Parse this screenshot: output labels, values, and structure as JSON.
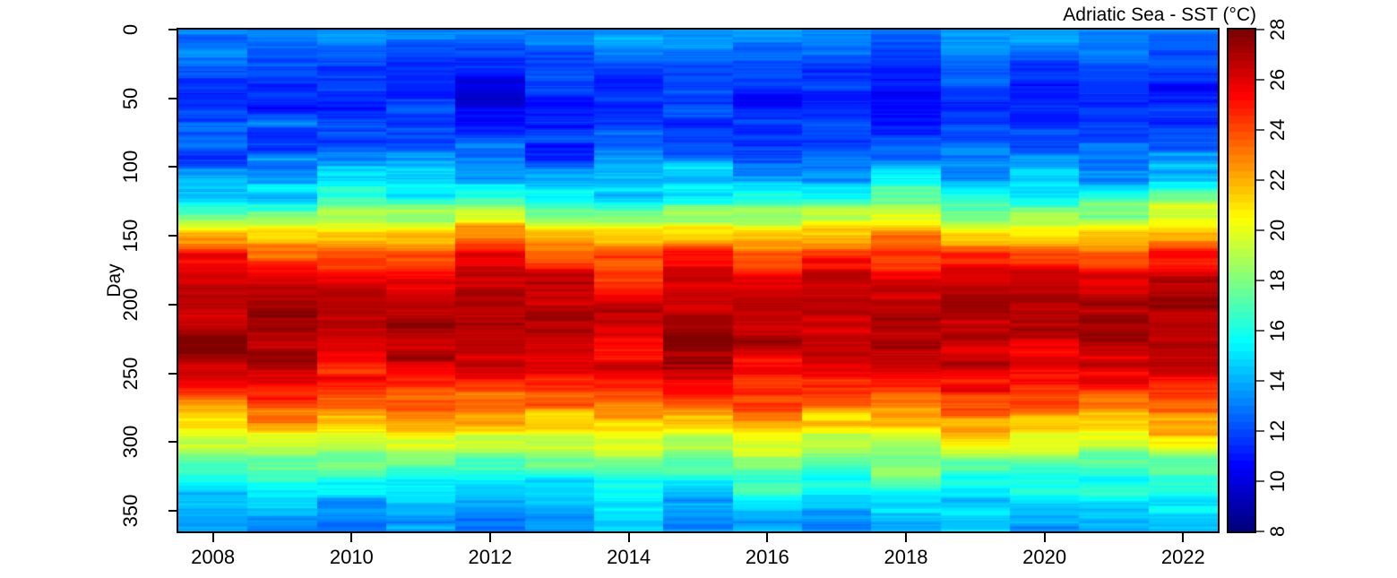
{
  "title": "Adriatic Sea - SST (°C)",
  "colors": {
    "background": "#ffffff",
    "plot_border": "#000000",
    "axis_tick": "#000000",
    "colorbar_tick": "#555555"
  },
  "chart_data": {
    "type": "heatmap",
    "title": "Adriatic Sea - SST (°C)",
    "xlabel": "",
    "ylabel": "Day",
    "x_ticks": [
      "2008",
      "2010",
      "2012",
      "2014",
      "2016",
      "2018",
      "2020",
      "2022"
    ],
    "y_ticks": [
      "0",
      "50",
      "100",
      "150",
      "200",
      "250",
      "300",
      "350"
    ],
    "y_range": [
      0,
      365
    ],
    "x_range": [
      2007.5,
      2022.5
    ],
    "grid": false,
    "colormap": "jet",
    "zlim": [
      8,
      28
    ],
    "colorbar_ticks": [
      "8",
      "10",
      "12",
      "14",
      "16",
      "18",
      "20",
      "22",
      "24",
      "26",
      "28"
    ],
    "colorbar_position": "right",
    "n_color_levels": 64,
    "daily_noise_sd_degC": 0.55,
    "control_days": [
      0,
      15,
      30,
      45,
      60,
      75,
      90,
      105,
      120,
      135,
      150,
      165,
      180,
      195,
      210,
      225,
      240,
      255,
      270,
      285,
      300,
      315,
      330,
      345,
      360
    ],
    "series": [
      {
        "name": "2008",
        "values": [
          13.4,
          12.6,
          11.9,
          11.5,
          11.6,
          12.0,
          12.6,
          13.6,
          15.2,
          18.0,
          21.6,
          24.6,
          26.3,
          27.2,
          26.8,
          27.4,
          26.6,
          25.2,
          23.2,
          20.6,
          18.9,
          16.9,
          15.3,
          14.0,
          13.2
        ]
      },
      {
        "name": "2009",
        "values": [
          13.2,
          12.4,
          11.7,
          11.3,
          11.4,
          11.9,
          12.7,
          14.0,
          15.8,
          18.8,
          22.3,
          24.2,
          25.7,
          26.8,
          27.2,
          26.6,
          26.8,
          25.6,
          24.3,
          23.0,
          19.5,
          17.2,
          15.8,
          14.6,
          13.8
        ]
      },
      {
        "name": "2010",
        "values": [
          13.5,
          12.6,
          11.6,
          11.2,
          11.3,
          11.8,
          12.8,
          14.2,
          15.6,
          18.2,
          21.8,
          24.0,
          26.0,
          26.8,
          26.4,
          26.6,
          25.8,
          25.0,
          23.4,
          21.4,
          19.2,
          17.6,
          15.6,
          14.2,
          13.3
        ]
      },
      {
        "name": "2011",
        "values": [
          13.0,
          12.2,
          11.6,
          11.4,
          11.5,
          12.0,
          12.9,
          14.1,
          15.9,
          18.6,
          21.7,
          24.4,
          25.6,
          26.4,
          27.4,
          27.0,
          26.8,
          25.8,
          24.0,
          22.6,
          20.0,
          17.8,
          16.0,
          14.4,
          13.5
        ]
      },
      {
        "name": "2012",
        "values": [
          13.2,
          12.0,
          11.1,
          10.6,
          10.8,
          11.6,
          12.6,
          14.0,
          15.7,
          18.9,
          22.6,
          25.0,
          26.7,
          27.2,
          27.0,
          26.6,
          26.0,
          25.2,
          23.8,
          22.4,
          19.8,
          17.4,
          15.7,
          14.3,
          13.4
        ]
      },
      {
        "name": "2013",
        "values": [
          13.4,
          12.6,
          11.9,
          11.5,
          11.4,
          11.8,
          12.5,
          13.7,
          15.3,
          17.9,
          21.4,
          24.1,
          25.9,
          26.5,
          27.3,
          26.8,
          26.2,
          25.3,
          23.6,
          21.5,
          19.4,
          17.3,
          15.6,
          14.2,
          13.3
        ]
      },
      {
        "name": "2014",
        "values": [
          13.6,
          12.9,
          12.2,
          11.8,
          11.7,
          12.1,
          12.9,
          14.1,
          15.6,
          18.1,
          21.0,
          23.2,
          25.0,
          26.0,
          26.3,
          26.0,
          25.7,
          24.9,
          23.5,
          21.7,
          19.8,
          17.7,
          16.0,
          14.6,
          13.7
        ]
      },
      {
        "name": "2015",
        "values": [
          13.5,
          12.7,
          12.0,
          11.6,
          11.5,
          11.9,
          12.7,
          13.9,
          15.6,
          18.4,
          21.9,
          24.6,
          26.1,
          26.6,
          26.9,
          27.6,
          27.0,
          25.7,
          23.9,
          21.9,
          19.7,
          17.5,
          15.8,
          14.4,
          13.5
        ]
      },
      {
        "name": "2016",
        "values": [
          13.7,
          12.8,
          12.0,
          11.6,
          11.6,
          12.0,
          12.8,
          14.2,
          15.9,
          18.6,
          21.7,
          24.0,
          25.7,
          26.8,
          26.6,
          26.9,
          26.1,
          25.1,
          23.6,
          21.6,
          19.5,
          17.6,
          15.9,
          14.5,
          13.6
        ]
      },
      {
        "name": "2017",
        "values": [
          13.1,
          12.1,
          11.4,
          11.0,
          11.2,
          11.8,
          12.8,
          14.3,
          16.1,
          19.0,
          22.3,
          24.8,
          26.3,
          27.0,
          26.7,
          26.5,
          25.9,
          25.0,
          23.4,
          21.3,
          19.2,
          17.1,
          15.4,
          14.1,
          13.2
        ]
      },
      {
        "name": "2018",
        "values": [
          13.0,
          12.1,
          11.3,
          10.9,
          11.0,
          11.7,
          12.7,
          14.2,
          16.2,
          19.2,
          22.5,
          24.9,
          26.4,
          27.1,
          26.9,
          27.2,
          26.3,
          25.4,
          23.9,
          22.0,
          19.9,
          17.8,
          16.1,
          14.7,
          13.8
        ]
      },
      {
        "name": "2019",
        "values": [
          13.6,
          12.8,
          12.0,
          11.6,
          11.5,
          11.9,
          12.7,
          13.8,
          15.4,
          18.0,
          21.3,
          24.4,
          26.2,
          26.8,
          27.3,
          26.9,
          26.5,
          25.5,
          23.8,
          21.8,
          19.7,
          17.6,
          15.9,
          14.5,
          13.6
        ]
      },
      {
        "name": "2020",
        "values": [
          13.7,
          12.9,
          12.1,
          11.7,
          11.7,
          12.1,
          12.9,
          14.1,
          15.8,
          18.5,
          21.8,
          24.3,
          25.9,
          26.7,
          27.0,
          26.7,
          26.1,
          25.2,
          23.7,
          21.7,
          19.6,
          17.5,
          15.8,
          14.4,
          13.5
        ]
      },
      {
        "name": "2021",
        "values": [
          13.4,
          12.5,
          11.8,
          11.4,
          11.4,
          11.9,
          13.4,
          14.2,
          15.7,
          18.3,
          21.5,
          24.2,
          25.8,
          26.9,
          27.2,
          27.4,
          26.7,
          25.6,
          23.9,
          21.9,
          19.8,
          17.7,
          15.9,
          14.5,
          13.6
        ]
      },
      {
        "name": "2022",
        "values": [
          13.5,
          12.6,
          11.9,
          11.5,
          11.5,
          12.0,
          12.9,
          14.3,
          16.2,
          19.6,
          22.9,
          25.2,
          26.8,
          27.4,
          27.6,
          27.2,
          26.9,
          25.9,
          24.2,
          22.1,
          19.9,
          17.7,
          16.0,
          14.6,
          13.7
        ]
      }
    ]
  }
}
